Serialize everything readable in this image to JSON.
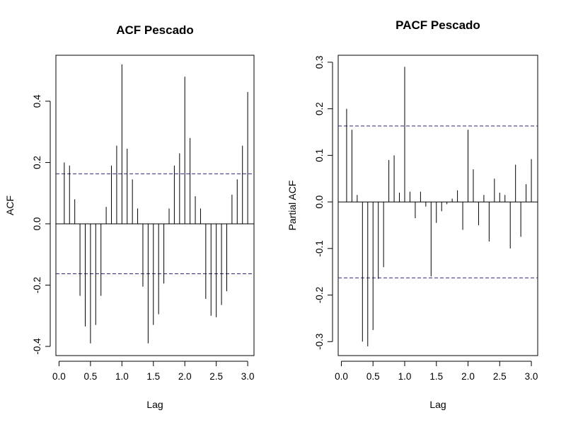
{
  "chart_data": [
    {
      "type": "bar",
      "title": "ACF Pescado",
      "xlabel": "Lag",
      "ylabel": "ACF",
      "xlim": [
        -0.05,
        3.1
      ],
      "ylim": [
        -0.43,
        0.55
      ],
      "xticks": [
        0.0,
        0.5,
        1.0,
        1.5,
        2.0,
        2.5,
        3.0
      ],
      "xtick_labels": [
        "0.0",
        "0.5",
        "1.0",
        "1.5",
        "2.0",
        "2.5",
        "3.0"
      ],
      "yticks": [
        -0.4,
        -0.2,
        0.0,
        0.2,
        0.4
      ],
      "ytick_labels": [
        "-0.4",
        "-0.2",
        "0.0",
        "0.2",
        "0.4"
      ],
      "confidence_bound": 0.163,
      "zero_line": true,
      "x": [
        0.0833,
        0.1667,
        0.25,
        0.3333,
        0.4167,
        0.5,
        0.5833,
        0.6667,
        0.75,
        0.8333,
        0.9167,
        1.0,
        1.0833,
        1.1667,
        1.25,
        1.3333,
        1.4167,
        1.5,
        1.5833,
        1.6667,
        1.75,
        1.8333,
        1.9167,
        2.0,
        2.0833,
        2.1667,
        2.25,
        2.3333,
        2.4167,
        2.5,
        2.5833,
        2.6667,
        2.75,
        2.8333,
        2.9167,
        3.0
      ],
      "values": [
        0.2,
        0.19,
        0.08,
        -0.235,
        -0.335,
        -0.39,
        -0.33,
        -0.235,
        0.055,
        0.19,
        0.255,
        0.52,
        0.245,
        0.145,
        0.05,
        -0.205,
        -0.39,
        -0.33,
        -0.295,
        -0.195,
        0.05,
        0.19,
        0.23,
        0.48,
        0.28,
        0.09,
        0.05,
        -0.245,
        -0.3,
        -0.305,
        -0.265,
        -0.22,
        0.095,
        0.145,
        0.255,
        0.43
      ]
    },
    {
      "type": "bar",
      "title": "PACF Pescado",
      "xlabel": "Lag",
      "ylabel": "Partial ACF",
      "xlim": [
        -0.05,
        3.1
      ],
      "ylim": [
        -0.33,
        0.315
      ],
      "xticks": [
        0.0,
        0.5,
        1.0,
        1.5,
        2.0,
        2.5,
        3.0
      ],
      "xtick_labels": [
        "0.0",
        "0.5",
        "1.0",
        "1.5",
        "2.0",
        "2.5",
        "3.0"
      ],
      "yticks": [
        -0.3,
        -0.2,
        -0.1,
        0.0,
        0.1,
        0.2,
        0.3
      ],
      "ytick_labels": [
        "-0.3",
        "-0.2",
        "-0.1",
        "0.0",
        "0.1",
        "0.2",
        "0.3"
      ],
      "confidence_bound": 0.163,
      "zero_line": true,
      "x": [
        0.0833,
        0.1667,
        0.25,
        0.3333,
        0.4167,
        0.5,
        0.5833,
        0.6667,
        0.75,
        0.8333,
        0.9167,
        1.0,
        1.0833,
        1.1667,
        1.25,
        1.3333,
        1.4167,
        1.5,
        1.5833,
        1.6667,
        1.75,
        1.8333,
        1.9167,
        2.0,
        2.0833,
        2.1667,
        2.25,
        2.3333,
        2.4167,
        2.5,
        2.5833,
        2.6667,
        2.75,
        2.8333,
        2.9167,
        3.0
      ],
      "values": [
        0.2,
        0.155,
        0.015,
        -0.3,
        -0.31,
        -0.275,
        -0.165,
        -0.14,
        0.09,
        0.1,
        0.02,
        0.29,
        0.022,
        -0.035,
        0.022,
        -0.01,
        -0.16,
        -0.045,
        -0.02,
        -0.005,
        0.007,
        0.025,
        -0.06,
        0.155,
        0.07,
        -0.05,
        0.015,
        -0.085,
        0.05,
        0.02,
        0.015,
        -0.1,
        0.08,
        -0.075,
        0.038,
        0.092
      ]
    }
  ]
}
